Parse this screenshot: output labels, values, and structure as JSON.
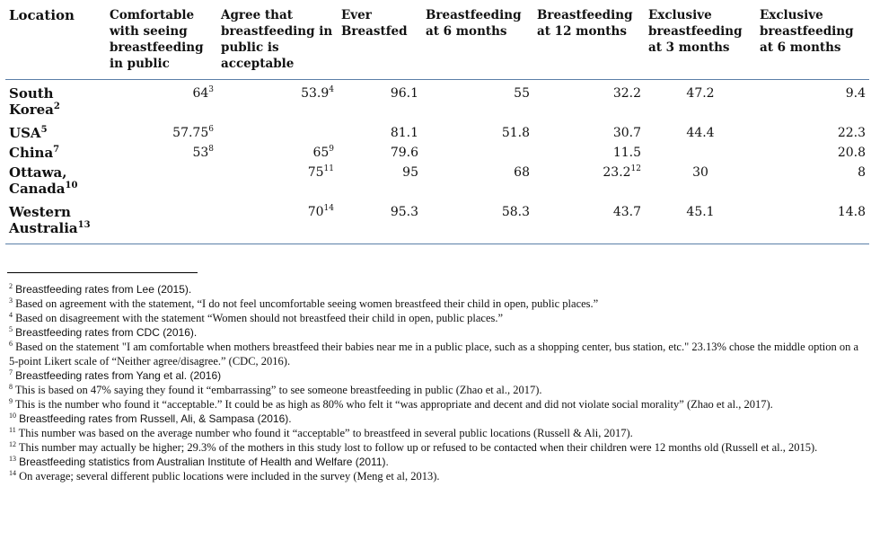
{
  "table": {
    "headers": [
      "Location",
      "Comfortable with seeing breastfeeding in public",
      "Agree that breastfeeding in public is acceptable",
      "Ever Breastfed",
      "Breastfeeding at 6 months",
      "Breastfeeding at 12 months",
      "Exclusive breastfeeding at 3 months",
      "Exclusive breastfeeding at 6 months"
    ],
    "rows": [
      {
        "location": "South Korea",
        "loc_ref": "2",
        "comfortable": "64",
        "comfortable_ref": "3",
        "agree": "53.9",
        "agree_ref": "4",
        "ever": "96.1",
        "m6": "55",
        "m12": "32.2",
        "m12_ref": "",
        "ex3": "47.2",
        "ex6": "9.4"
      },
      {
        "location": "USA",
        "loc_ref": "5",
        "comfortable": "57.75",
        "comfortable_ref": "6",
        "agree": "",
        "agree_ref": "",
        "ever": "81.1",
        "m6": "51.8",
        "m12": "30.7",
        "m12_ref": "",
        "ex3": "44.4",
        "ex6": "22.3"
      },
      {
        "location": "China",
        "loc_ref": "7",
        "comfortable": "53",
        "comfortable_ref": "8",
        "agree": "65",
        "agree_ref": "9",
        "ever": "79.6",
        "m6": "",
        "m12": "11.5",
        "m12_ref": "",
        "ex3": "",
        "ex6": "20.8"
      },
      {
        "location": "Ottawa, Canada",
        "loc_ref": "10",
        "comfortable": "",
        "comfortable_ref": "",
        "agree": "75",
        "agree_ref": "11",
        "ever": "95",
        "m6": "68",
        "m12": "23.2",
        "m12_ref": "12",
        "ex3": "30",
        "ex6": "8"
      },
      {
        "location": "Western Australia",
        "loc_ref": "13",
        "comfortable": "",
        "comfortable_ref": "",
        "agree": "70",
        "agree_ref": "14",
        "ever": "95.3",
        "m6": "58.3",
        "m12": "43.7",
        "m12_ref": "",
        "ex3": "45.1",
        "ex6": "14.8"
      }
    ]
  },
  "footnotes": [
    {
      "num": "2",
      "text": "Breastfeeding rates from Lee (2015)."
    },
    {
      "num": "3",
      "text": "Based on agreement with the statement, “I do not feel uncomfortable seeing women breastfeed their child in open, public places.”"
    },
    {
      "num": "4",
      "text": "Based on disagreement with the statement “Women should not breastfeed their child in open, public places.”"
    },
    {
      "num": "5",
      "text": "Breastfeeding rates from CDC (2016)."
    },
    {
      "num": "6",
      "text": "Based on the statement \"I am comfortable when mothers breastfeed their babies near me in a public place, such as a shopping center, bus station, etc.\" 23.13% chose the middle option on a 5-point Likert scale of “Neither agree/disagree.” (CDC, 2016)."
    },
    {
      "num": "7",
      "text": "Breastfeeding rates from Yang et al. (2016)"
    },
    {
      "num": "8",
      "text": "This is based on 47% saying they found it “embarrassing” to see someone breastfeeding in public (Zhao et al., 2017)."
    },
    {
      "num": "9",
      "text": "This is the number who found it “acceptable.” It could be as high as 80% who felt it “was appropriate and decent and did not violate social morality” (Zhao et al., 2017)."
    },
    {
      "num": "10",
      "text": "Breastfeeding rates from Russell, Ali, & Sampasa (2016)."
    },
    {
      "num": "11",
      "text": "This number was based on the average number who found it “acceptable” to breastfeed in several public locations (Russell & Ali, 2017)."
    },
    {
      "num": "12",
      "text": "This number may actually be higher; 29.3% of the mothers in this study lost to follow up or refused to be contacted when their children were 12 months old (Russell et al., 2015)."
    },
    {
      "num": "13",
      "text": "Breastfeeding statistics from Australian Institute of Health and Welfare (2011)."
    },
    {
      "num": "14",
      "text": "On average; several different public locations were included in the survey (Meng et al, 2013)."
    }
  ]
}
